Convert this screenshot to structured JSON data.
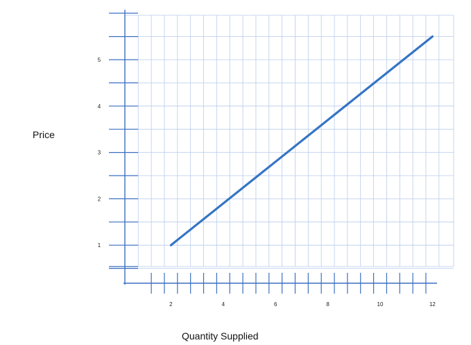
{
  "chart_data": {
    "type": "line",
    "title": "",
    "xlabel": "Quantity  Supplied",
    "ylabel": "Price",
    "xlim": [
      0,
      12
    ],
    "ylim": [
      0,
      5.5
    ],
    "grid": true,
    "x_ticks": [
      2,
      4,
      6,
      8,
      10,
      12
    ],
    "y_ticks": [
      1,
      2,
      3,
      4,
      5
    ],
    "series": [
      {
        "x": [
          2,
          12
        ],
        "y": [
          1,
          5.5
        ],
        "color": "#3474C4"
      }
    ]
  },
  "colors": {
    "grid": "#B8CCEB",
    "axis": "#3A6FC0",
    "line": "#3474C4"
  }
}
